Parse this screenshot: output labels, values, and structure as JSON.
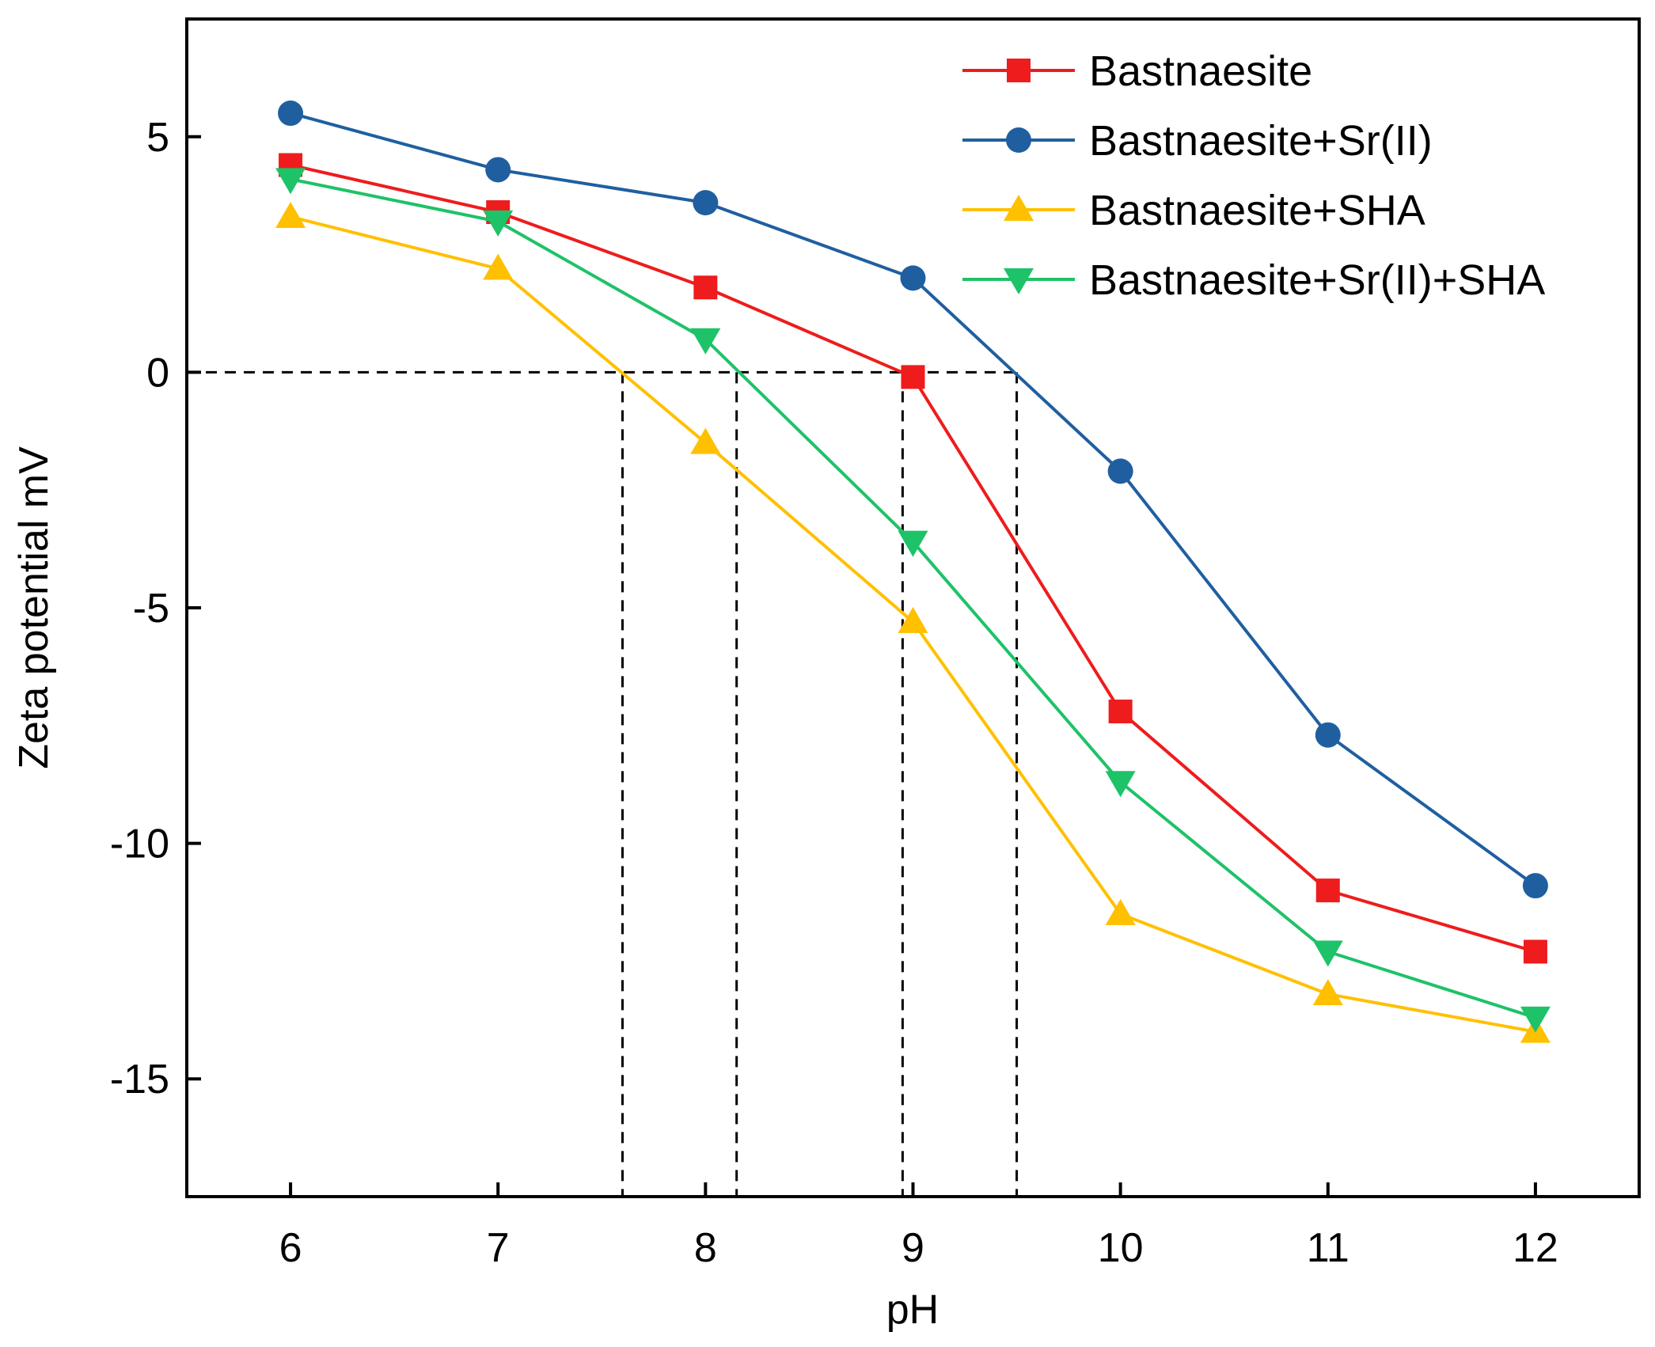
{
  "chart_data": {
    "type": "line",
    "title": "",
    "xlabel": "pH",
    "ylabel": "Zeta potential mV",
    "x": [
      6,
      7,
      8,
      9,
      10,
      11,
      12
    ],
    "xlim": [
      5.5,
      12.5
    ],
    "ylim": [
      -17.5,
      7.5
    ],
    "x_ticks": [
      "6",
      "7",
      "8",
      "9",
      "10",
      "11",
      "12"
    ],
    "x_tick_values": [
      6,
      7,
      8,
      9,
      10,
      11,
      12
    ],
    "y_ticks": [
      "5",
      "0",
      "-5",
      "-10",
      "-15"
    ],
    "y_tick_values": [
      5,
      0,
      -5,
      -10,
      -15
    ],
    "grid": false,
    "legend_position": "top-right",
    "zero_line": {
      "y": 0,
      "style": "dashed"
    },
    "reference_lines": [
      {
        "x": 7.6,
        "style": "dashed"
      },
      {
        "x": 8.15,
        "style": "dashed"
      },
      {
        "x": 8.95,
        "style": "dashed"
      },
      {
        "x": 9.5,
        "style": "dashed"
      }
    ],
    "series": [
      {
        "name": "Bastnaesite",
        "color": "#ee1c1c",
        "marker": "square",
        "values": [
          4.4,
          3.4,
          1.8,
          -0.1,
          -7.2,
          -11.0,
          -12.3
        ]
      },
      {
        "name": "Bastnaesite+Sr(II)",
        "color": "#1f5fa0",
        "marker": "circle",
        "values": [
          5.5,
          4.3,
          3.6,
          2.0,
          -2.1,
          -7.7,
          -10.9
        ]
      },
      {
        "name": "Bastnaesite+SHA",
        "color": "#ffc000",
        "marker": "triangle-up",
        "values": [
          3.3,
          2.2,
          -1.5,
          -5.3,
          -11.5,
          -13.2,
          -14.0
        ]
      },
      {
        "name": "Bastnaesite+Sr(II)+SHA",
        "color": "#1ec268",
        "marker": "triangle-down",
        "values": [
          4.1,
          3.2,
          0.7,
          -3.6,
          -8.7,
          -12.3,
          -13.7
        ]
      }
    ]
  }
}
